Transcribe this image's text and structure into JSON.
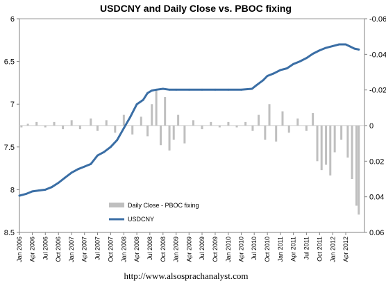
{
  "chart_data": {
    "type": "line",
    "title": "USDCNY and Daily Close vs. PBOC fixing",
    "footer": "http://www.alsosprachanalyst.com",
    "x_ticks": [
      "Jan 2006",
      "Apr 2006",
      "Jul 2006",
      "Oct 2006",
      "Jan 2007",
      "Apr 2007",
      "Jul 2007",
      "Oct 2007",
      "Jan 2008",
      "Apr 2008",
      "Jul 2008",
      "Oct 2008",
      "Jan 2009",
      "Apr 2009",
      "Jul 2009",
      "Oct 2009",
      "Jan 2010",
      "Apr 2010",
      "Jul 2010",
      "Oct 2010",
      "Jan 2011",
      "Apr 2011",
      "Jul 2011",
      "Oct 2011",
      "Jan 2012",
      "Apr 2012"
    ],
    "y_left": {
      "ticks": [
        "6",
        "6.5",
        "7",
        "7.5",
        "8",
        "8.5"
      ],
      "min": 6,
      "max": 8.5,
      "inverted": true
    },
    "y_right": {
      "ticks": [
        "-0.06",
        "-0.04",
        "-0.02",
        "0",
        "0.02",
        "0.04",
        "0.06"
      ],
      "min": -0.06,
      "max": 0.06,
      "inverted": true
    },
    "legend": {
      "position": "bottom-left-inside",
      "items": [
        {
          "label": "Daily Close - PBOC fixing",
          "color": "#bfbfbf",
          "kind": "area"
        },
        {
          "label": "USDCNY",
          "color": "#3a6ea5",
          "kind": "line"
        }
      ]
    },
    "series": [
      {
        "name": "USDCNY",
        "axis": "left",
        "color": "#3a6ea5",
        "points": [
          [
            "2006-01-01",
            8.07
          ],
          [
            "2006-02-15",
            8.05
          ],
          [
            "2006-04-01",
            8.02
          ],
          [
            "2006-05-15",
            8.01
          ],
          [
            "2006-07-01",
            8.0
          ],
          [
            "2006-08-15",
            7.97
          ],
          [
            "2006-10-01",
            7.92
          ],
          [
            "2006-11-15",
            7.86
          ],
          [
            "2007-01-01",
            7.8
          ],
          [
            "2007-02-15",
            7.76
          ],
          [
            "2007-04-01",
            7.73
          ],
          [
            "2007-05-15",
            7.7
          ],
          [
            "2007-07-01",
            7.6
          ],
          [
            "2007-08-15",
            7.56
          ],
          [
            "2007-10-01",
            7.5
          ],
          [
            "2007-11-15",
            7.42
          ],
          [
            "2008-01-01",
            7.28
          ],
          [
            "2008-02-15",
            7.15
          ],
          [
            "2008-04-01",
            7.0
          ],
          [
            "2008-05-15",
            6.95
          ],
          [
            "2008-06-15",
            6.87
          ],
          [
            "2008-07-15",
            6.84
          ],
          [
            "2008-08-15",
            6.83
          ],
          [
            "2008-10-01",
            6.82
          ],
          [
            "2008-11-15",
            6.83
          ],
          [
            "2009-01-01",
            6.83
          ],
          [
            "2009-04-01",
            6.83
          ],
          [
            "2009-07-01",
            6.83
          ],
          [
            "2009-10-01",
            6.83
          ],
          [
            "2010-01-01",
            6.83
          ],
          [
            "2010-04-01",
            6.83
          ],
          [
            "2010-06-15",
            6.82
          ],
          [
            "2010-07-15",
            6.78
          ],
          [
            "2010-09-01",
            6.72
          ],
          [
            "2010-10-01",
            6.67
          ],
          [
            "2010-11-15",
            6.64
          ],
          [
            "2011-01-01",
            6.6
          ],
          [
            "2011-02-15",
            6.58
          ],
          [
            "2011-04-01",
            6.53
          ],
          [
            "2011-05-15",
            6.5
          ],
          [
            "2011-07-01",
            6.46
          ],
          [
            "2011-08-15",
            6.41
          ],
          [
            "2011-10-01",
            6.37
          ],
          [
            "2011-11-15",
            6.34
          ],
          [
            "2012-01-01",
            6.32
          ],
          [
            "2012-02-15",
            6.3
          ],
          [
            "2012-04-01",
            6.3
          ],
          [
            "2012-06-01",
            6.35
          ],
          [
            "2012-07-01",
            6.36
          ]
        ]
      },
      {
        "name": "Daily Close - PBOC fixing",
        "axis": "right",
        "color": "#bfbfbf",
        "points": [
          [
            "2006-01-15",
            0.001
          ],
          [
            "2006-03-01",
            -0.001
          ],
          [
            "2006-05-01",
            -0.002
          ],
          [
            "2006-07-01",
            0.001
          ],
          [
            "2006-09-01",
            -0.002
          ],
          [
            "2006-11-01",
            0.002
          ],
          [
            "2007-01-01",
            -0.003
          ],
          [
            "2007-03-01",
            0.002
          ],
          [
            "2007-05-15",
            -0.004
          ],
          [
            "2007-07-01",
            0.003
          ],
          [
            "2007-09-01",
            -0.003
          ],
          [
            "2007-11-01",
            0.004
          ],
          [
            "2008-01-01",
            -0.006
          ],
          [
            "2008-03-01",
            0.005
          ],
          [
            "2008-05-01",
            -0.005
          ],
          [
            "2008-06-15",
            0.006
          ],
          [
            "2008-07-15",
            -0.012
          ],
          [
            "2008-08-15",
            -0.02
          ],
          [
            "2008-09-15",
            0.011
          ],
          [
            "2008-10-15",
            -0.016
          ],
          [
            "2008-11-15",
            0.014
          ],
          [
            "2008-12-15",
            0.008
          ],
          [
            "2009-01-15",
            -0.006
          ],
          [
            "2009-03-01",
            0.01
          ],
          [
            "2009-05-01",
            -0.003
          ],
          [
            "2009-07-01",
            0.002
          ],
          [
            "2009-09-01",
            -0.002
          ],
          [
            "2009-11-01",
            0.001
          ],
          [
            "2010-01-01",
            -0.002
          ],
          [
            "2010-03-01",
            0.001
          ],
          [
            "2010-05-01",
            -0.002
          ],
          [
            "2010-06-20",
            0.003
          ],
          [
            "2010-08-01",
            -0.006
          ],
          [
            "2010-09-15",
            0.008
          ],
          [
            "2010-10-15",
            -0.012
          ],
          [
            "2010-12-01",
            0.009
          ],
          [
            "2011-01-15",
            -0.008
          ],
          [
            "2011-03-01",
            0.004
          ],
          [
            "2011-05-01",
            -0.004
          ],
          [
            "2011-07-01",
            0.003
          ],
          [
            "2011-08-15",
            -0.007
          ],
          [
            "2011-09-15",
            0.02
          ],
          [
            "2011-10-15",
            0.025
          ],
          [
            "2011-11-15",
            0.022
          ],
          [
            "2011-12-15",
            0.028
          ],
          [
            "2012-01-15",
            0.015
          ],
          [
            "2012-03-01",
            0.008
          ],
          [
            "2012-04-15",
            0.018
          ],
          [
            "2012-05-15",
            0.03
          ],
          [
            "2012-06-15",
            0.045
          ],
          [
            "2012-07-01",
            0.05
          ]
        ]
      }
    ]
  }
}
